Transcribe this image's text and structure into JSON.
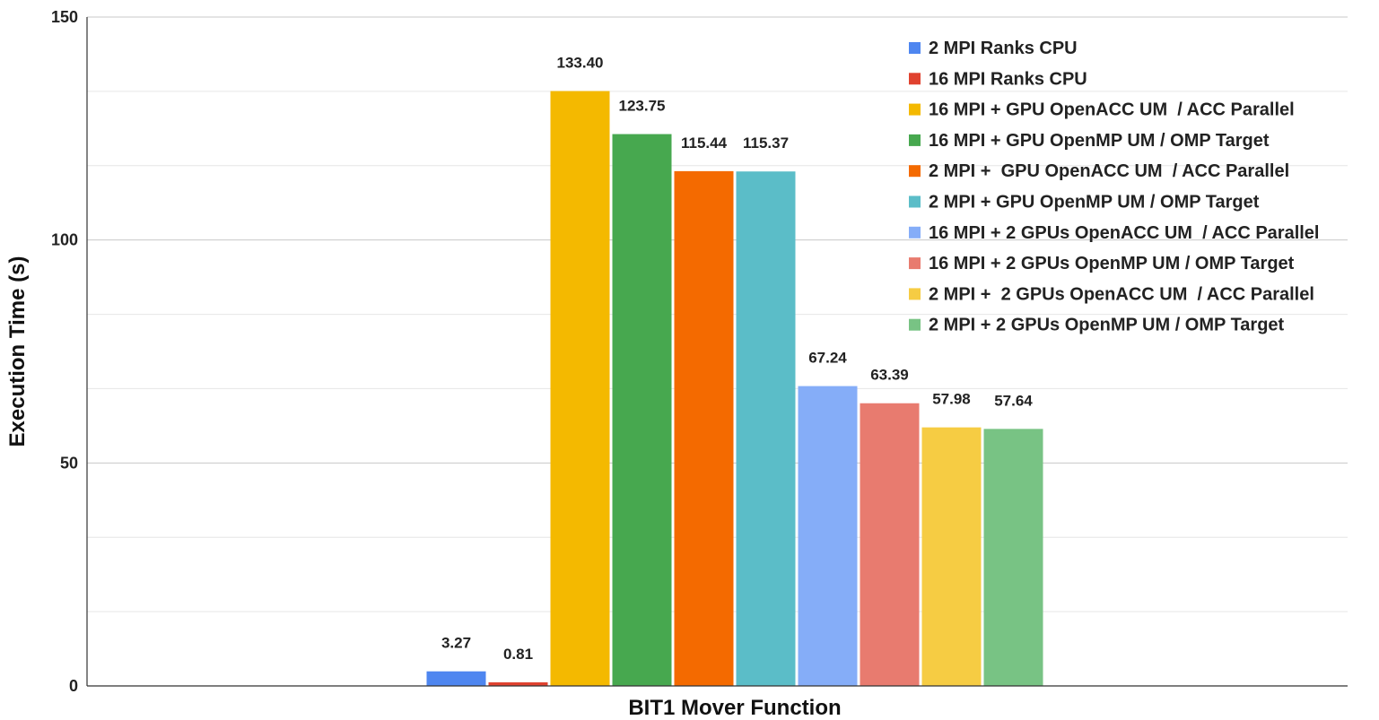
{
  "chart_data": {
    "type": "bar",
    "title": "",
    "xlabel": "BIT1 Mover Function",
    "ylabel": "Execution Time (s)",
    "ylim": [
      0,
      150
    ],
    "major_ticks": [
      0,
      50,
      100,
      150
    ],
    "minor_ticks": [
      16.67,
      33.33,
      66.67,
      83.33,
      116.67,
      133.33
    ],
    "grid": true,
    "legend_position": "top-right",
    "categories": [
      "BIT1 Mover Function"
    ],
    "series": [
      {
        "name": "2 MPI Ranks CPU",
        "value": 3.27,
        "label": "3.27",
        "color": "#4e86f0"
      },
      {
        "name": "16 MPI Ranks CPU",
        "value": 0.81,
        "label": "0.81",
        "color": "#e0422f"
      },
      {
        "name": "16 MPI + GPU OpenACC UM  / ACC Parallel",
        "value": 133.4,
        "label": "133.40",
        "color": "#f4b900"
      },
      {
        "name": "16 MPI + GPU OpenMP UM / OMP Target",
        "value": 123.75,
        "label": "123.75",
        "color": "#47a84f"
      },
      {
        "name": "2 MPI +  GPU OpenACC UM  / ACC Parallel",
        "value": 115.44,
        "label": "115.44",
        "color": "#f46a00"
      },
      {
        "name": "2 MPI + GPU OpenMP UM / OMP Target",
        "value": 115.37,
        "label": "115.37",
        "color": "#5bbdc8"
      },
      {
        "name": "16 MPI + 2 GPUs OpenACC UM  / ACC Parallel",
        "value": 67.24,
        "label": "67.24",
        "color": "#85adf8"
      },
      {
        "name": "16 MPI + 2 GPUs OpenMP UM / OMP Target",
        "value": 63.39,
        "label": "63.39",
        "color": "#e87b6f"
      },
      {
        "name": "2 MPI +  2 GPUs OpenACC UM  / ACC Parallel",
        "value": 57.98,
        "label": "57.98",
        "color": "#f6cc43"
      },
      {
        "name": "2 MPI + 2 GPUs OpenMP UM / OMP Target",
        "value": 57.64,
        "label": "57.64",
        "color": "#78c384"
      }
    ]
  }
}
